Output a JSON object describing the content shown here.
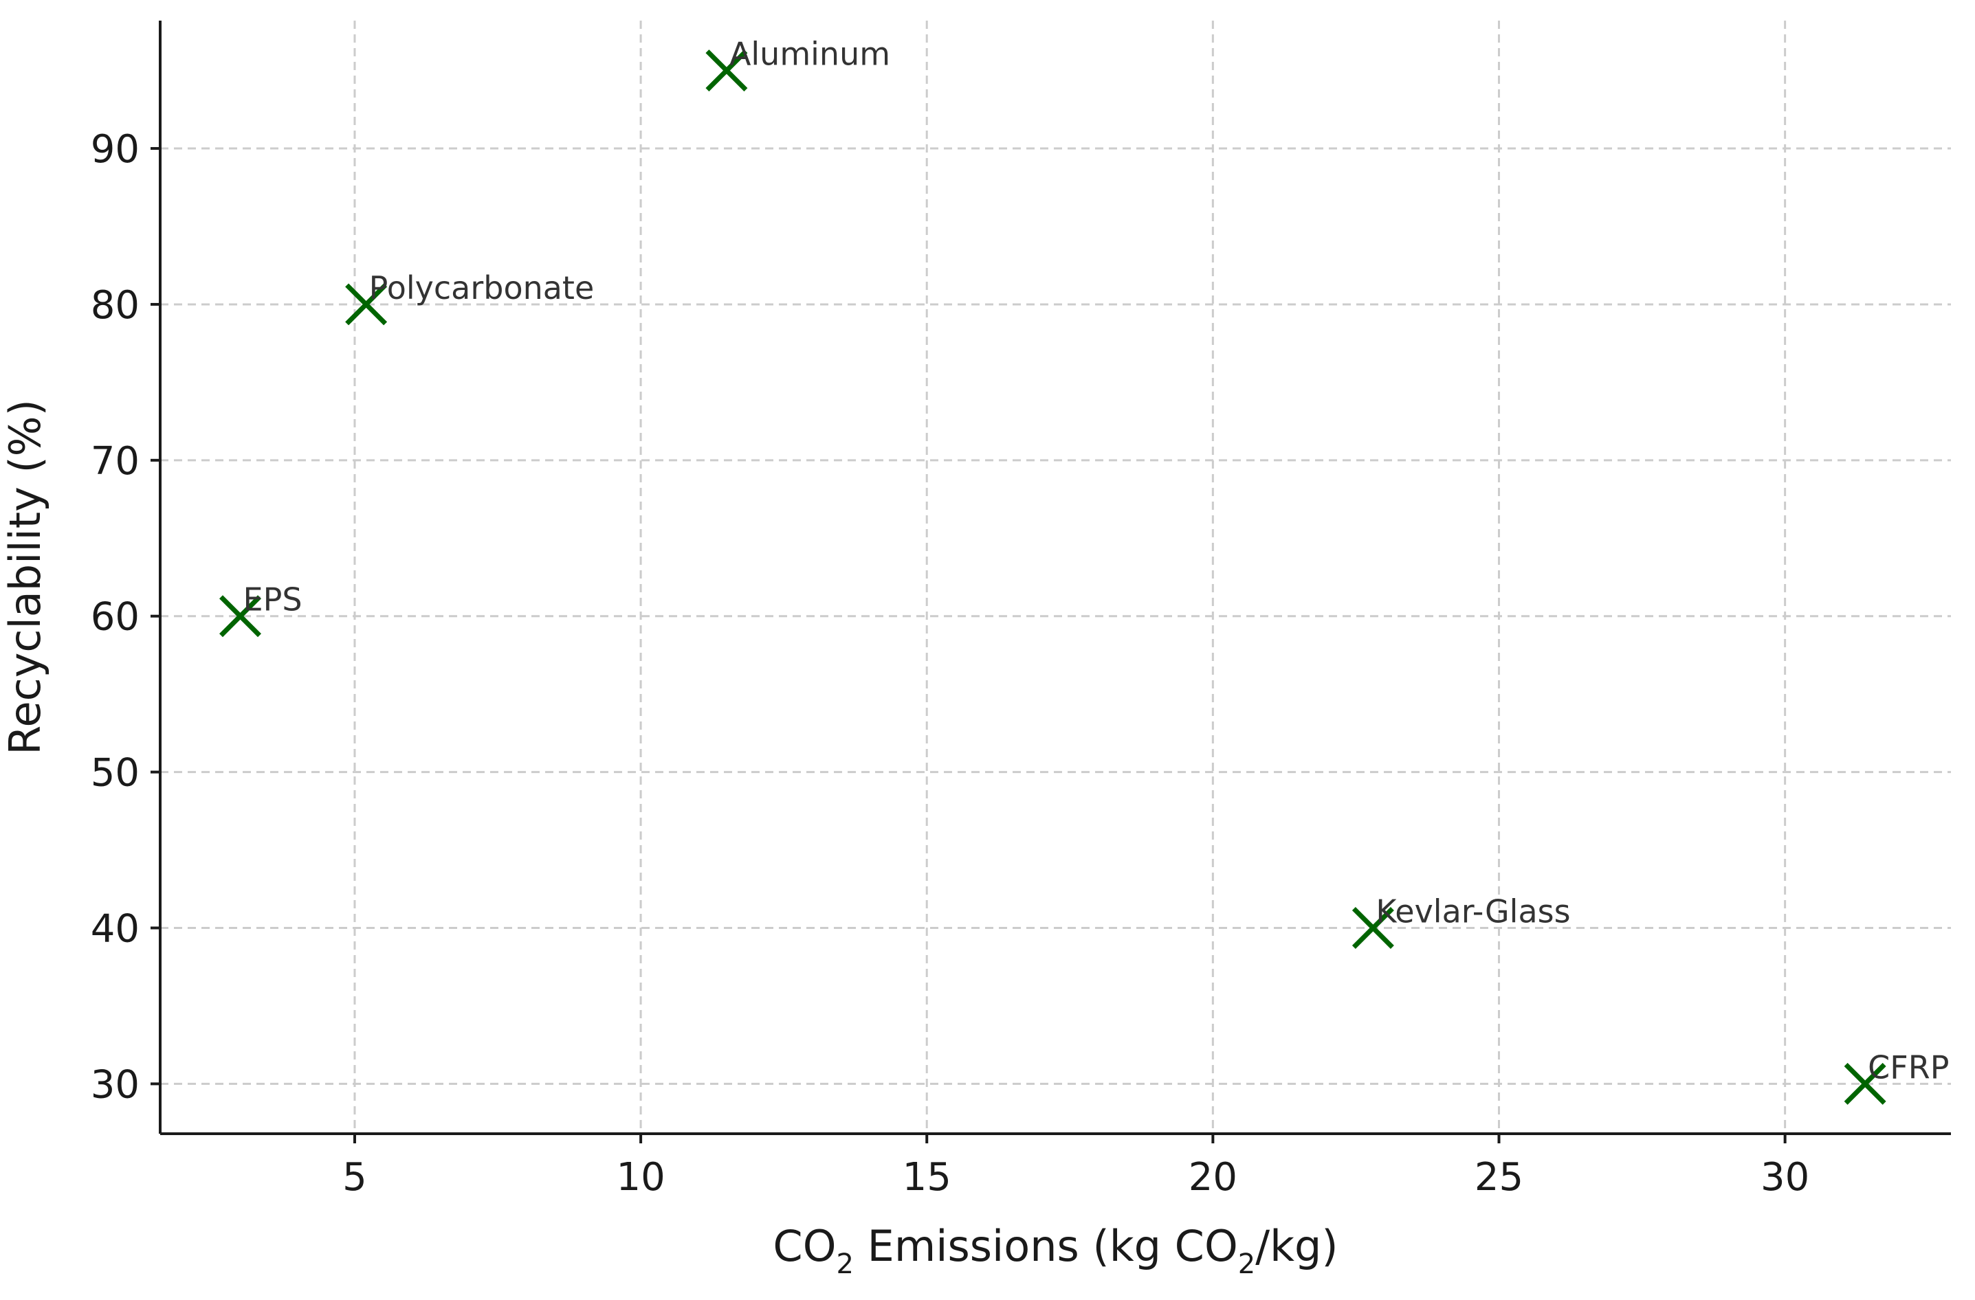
{
  "chart_data": {
    "type": "scatter",
    "xlabel": {
      "prefix": "CO",
      "sub1": "2",
      "middle": " Emissions (kg CO",
      "sub2": "2",
      "suffix": "/kg)"
    },
    "ylabel": "Recyclability (%)",
    "xlim": [
      1.6,
      32.9
    ],
    "ylim": [
      26.8,
      98.2
    ],
    "xticks": [
      5,
      10,
      15,
      20,
      25,
      30
    ],
    "yticks": [
      30,
      40,
      50,
      60,
      70,
      80,
      90
    ],
    "grid": true,
    "marker": "x",
    "marker_color": "#006400",
    "points": [
      {
        "label": "EPS",
        "x": 3.0,
        "y": 60
      },
      {
        "label": "Polycarbonate",
        "x": 5.2,
        "y": 80
      },
      {
        "label": "Aluminum",
        "x": 11.5,
        "y": 95
      },
      {
        "label": "Kevlar-Glass",
        "x": 22.8,
        "y": 40
      },
      {
        "label": "CFRP",
        "x": 31.4,
        "y": 30
      }
    ]
  }
}
